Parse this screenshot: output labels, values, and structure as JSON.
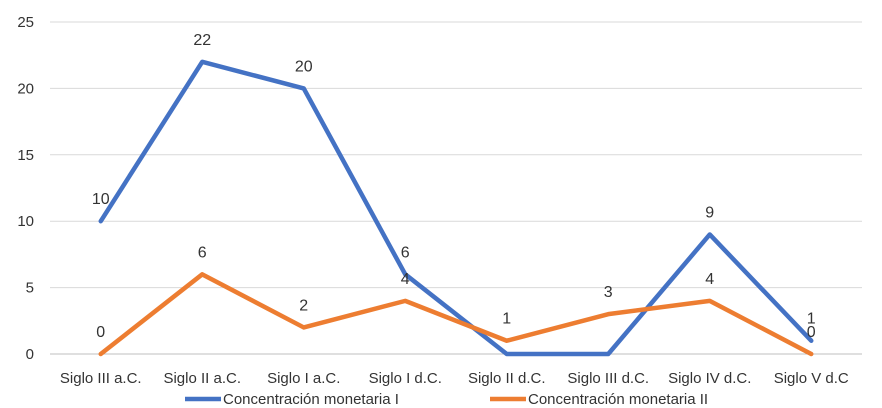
{
  "chart_data": {
    "type": "line",
    "title": "",
    "xlabel": "",
    "ylabel": "",
    "categories": [
      "Siglo III a.C.",
      "Siglo II a.C.",
      "Siglo I a.C.",
      "Siglo I d.C.",
      "Siglo II d.C.",
      "Siglo III d.C.",
      "Siglo IV d.C.",
      "Siglo V d.C"
    ],
    "ylim": [
      0,
      25
    ],
    "yticks": [
      0,
      5,
      10,
      15,
      20,
      25
    ],
    "grid": "horizontal",
    "legend": "bottom",
    "series": [
      {
        "name": "Concentración monetaria I",
        "color": "#4472C4",
        "values": [
          10,
          22,
          20,
          6,
          0,
          0,
          9,
          1
        ]
      },
      {
        "name": "Concentración monetaria II",
        "color": "#ED7D31",
        "values": [
          0,
          6,
          2,
          4,
          1,
          3,
          4,
          0
        ]
      }
    ],
    "data_labels": [
      [
        "10",
        "22",
        "20",
        "6",
        "",
        "",
        "9",
        "1"
      ],
      [
        "0",
        "6",
        "2",
        "4",
        "1",
        "3",
        "4",
        "0"
      ]
    ]
  }
}
